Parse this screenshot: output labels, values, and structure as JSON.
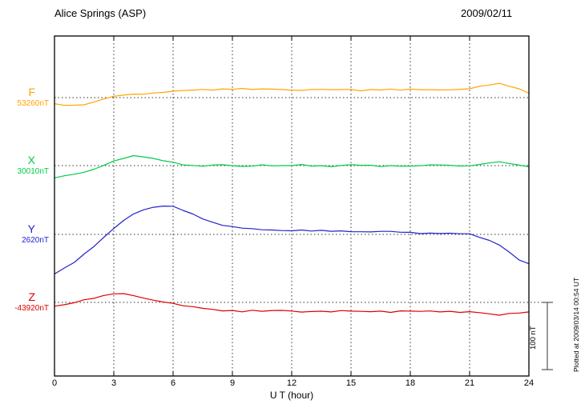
{
  "header": {
    "title": "Alice Springs (ASP)",
    "date": "2009/02/11"
  },
  "plotted_at": "Plotted at 2009/03/14 00:54 UT",
  "chart_data": {
    "type": "line",
    "title": "Alice Springs (ASP)",
    "date_label": "2009/02/11",
    "xlabel": "U T (hour)",
    "xlim": [
      0,
      24
    ],
    "x_ticks": [
      0,
      3,
      6,
      9,
      12,
      15,
      18,
      21,
      24
    ],
    "x_step_hours": 0.5,
    "grid": "dotted vertical lines at 3-hour ticks; dotted horizontal baseline per series",
    "legend_position": "left-of-plot baseline labels",
    "scale_bar": {
      "label": "100 nT",
      "value_nT": 100
    },
    "series": [
      {
        "name": "F",
        "base_value_label": "53260nT",
        "color": "#FFA500",
        "offsets_nT": [
          -9,
          -11,
          -11,
          -10,
          -7,
          -2,
          1,
          4,
          5,
          6,
          7,
          8,
          9,
          10,
          11,
          12,
          12,
          13,
          13,
          13,
          12,
          12,
          13,
          12,
          12,
          11,
          12,
          12,
          11,
          12,
          12,
          11,
          12,
          12,
          12,
          11,
          12,
          12,
          12,
          12,
          12,
          12,
          13,
          16,
          19,
          21,
          18,
          13,
          7
        ]
      },
      {
        "name": "X",
        "base_value_label": "30010nT",
        "color": "#00CC44",
        "offsets_nT": [
          -18,
          -16,
          -13,
          -10,
          -5,
          1,
          7,
          11,
          14,
          13,
          10,
          8,
          5,
          2,
          0,
          -1,
          0,
          1,
          0,
          -1,
          0,
          1,
          0,
          -1,
          0,
          1,
          0,
          0,
          -1,
          0,
          1,
          0,
          0,
          -1,
          0,
          0,
          -1,
          0,
          0,
          1,
          0,
          0,
          0,
          2,
          4,
          5,
          3,
          0,
          -1
        ]
      },
      {
        "name": "Y",
        "base_value_label": "2620nT",
        "color": "#2222CC",
        "offsets_nT": [
          -58,
          -50,
          -41,
          -30,
          -18,
          -5,
          9,
          21,
          31,
          37,
          40,
          42,
          41,
          36,
          30,
          24,
          18,
          14,
          11,
          9,
          8,
          7,
          7,
          6,
          6,
          6,
          5,
          5,
          5,
          5,
          5,
          4,
          4,
          4,
          4,
          3,
          3,
          2,
          2,
          2,
          1,
          1,
          0,
          -4,
          -9,
          -15,
          -26,
          -38,
          -44
        ]
      },
      {
        "name": "Z",
        "base_value_label": "-43920nT",
        "color": "#DD0000",
        "offsets_nT": [
          -6,
          -4,
          0,
          4,
          7,
          10,
          13,
          12,
          10,
          6,
          4,
          1,
          -1,
          -5,
          -7,
          -9,
          -11,
          -12,
          -12,
          -13,
          -12,
          -13,
          -13,
          -12,
          -13,
          -14,
          -13,
          -13,
          -14,
          -13,
          -13,
          -14,
          -13,
          -13,
          -14,
          -13,
          -13,
          -14,
          -13,
          -14,
          -13,
          -14,
          -14,
          -15,
          -18,
          -19,
          -17,
          -15,
          -14
        ]
      }
    ]
  }
}
